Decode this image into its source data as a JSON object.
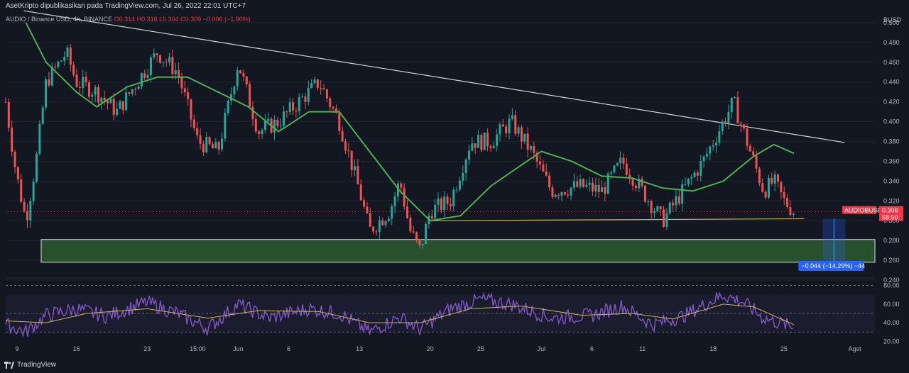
{
  "header": {
    "caption": "AsetKripto dipublikasikan pada TradingView.com, Jul 26, 2022 22:01 UTC+7"
  },
  "symbol_bar": {
    "name": "AUDIO / Binance USD, 4h, BINANCE",
    "ohlc": "O0.314  H0.316  L0.304  C0.309  −0.006 (−1.90%)"
  },
  "footer": {
    "brand": "TradingView"
  },
  "colors": {
    "background": "#131722",
    "grid": "#1f2430",
    "up_candle": "#26a69a",
    "down_candle": "#ef5350",
    "moving_average": "#4caf50",
    "trendline": "#d1d4dc",
    "support_line": "#c9b458",
    "zone_fill": "#2e5b2e",
    "rsi_line": "#7e57c2",
    "rsi_ma": "#c9b458",
    "price_tag": "#f23645",
    "measure_tag": "#2962ff"
  },
  "chart_data": {
    "type": "line",
    "symbol": "AUDIO / Binance USD",
    "timeframe": "4h",
    "y_axis": {
      "unit": "BUSD",
      "ticks": [
        "0.500",
        "0.480",
        "0.460",
        "0.440",
        "0.420",
        "0.400",
        "0.380",
        "0.360",
        "0.340",
        "0.320",
        "0.300",
        "0.280",
        "0.260",
        "0.240"
      ],
      "range": [
        0.24,
        0.51
      ]
    },
    "x_axis": {
      "ticks": [
        "9",
        "16",
        "23",
        "15:00",
        "Jun",
        "6",
        "13",
        "20",
        "25",
        "Jul",
        "6",
        "11",
        "18",
        "25",
        "Agst"
      ]
    },
    "price_series": [
      {
        "x": "May 9",
        "y": 0.42
      },
      {
        "x": "May 10",
        "y": 0.35
      },
      {
        "x": "May 11",
        "y": 0.3
      },
      {
        "x": "May 12",
        "y": 0.36
      },
      {
        "x": "May 13",
        "y": 0.44
      },
      {
        "x": "May 15",
        "y": 0.47
      },
      {
        "x": "May 16",
        "y": 0.44
      },
      {
        "x": "May 18",
        "y": 0.43
      },
      {
        "x": "May 20",
        "y": 0.41
      },
      {
        "x": "May 22",
        "y": 0.44
      },
      {
        "x": "May 24",
        "y": 0.47
      },
      {
        "x": "May 26",
        "y": 0.45
      },
      {
        "x": "May 28",
        "y": 0.38
      },
      {
        "x": "May 30",
        "y": 0.37
      },
      {
        "x": "Jun 1",
        "y": 0.46
      },
      {
        "x": "Jun 3",
        "y": 0.39
      },
      {
        "x": "Jun 5",
        "y": 0.4
      },
      {
        "x": "Jun 7",
        "y": 0.42
      },
      {
        "x": "Jun 9",
        "y": 0.44
      },
      {
        "x": "Jun 11",
        "y": 0.4
      },
      {
        "x": "Jun 13",
        "y": 0.33
      },
      {
        "x": "Jun 14",
        "y": 0.29
      },
      {
        "x": "Jun 16",
        "y": 0.31
      },
      {
        "x": "Jun 17",
        "y": 0.34
      },
      {
        "x": "Jun 18",
        "y": 0.29
      },
      {
        "x": "Jun 19",
        "y": 0.27
      },
      {
        "x": "Jun 20",
        "y": 0.31
      },
      {
        "x": "Jun 22",
        "y": 0.32
      },
      {
        "x": "Jun 24",
        "y": 0.38
      },
      {
        "x": "Jun 26",
        "y": 0.38
      },
      {
        "x": "Jun 28",
        "y": 0.4
      },
      {
        "x": "Jun 30",
        "y": 0.37
      },
      {
        "x": "Jul 2",
        "y": 0.33
      },
      {
        "x": "Jul 5",
        "y": 0.335
      },
      {
        "x": "Jul 7",
        "y": 0.33
      },
      {
        "x": "Jul 9",
        "y": 0.36
      },
      {
        "x": "Jul 11",
        "y": 0.33
      },
      {
        "x": "Jul 13",
        "y": 0.3
      },
      {
        "x": "Jul 15",
        "y": 0.33
      },
      {
        "x": "Jul 17",
        "y": 0.36
      },
      {
        "x": "Jul 19",
        "y": 0.4
      },
      {
        "x": "Jul 20",
        "y": 0.42
      },
      {
        "x": "Jul 21",
        "y": 0.39
      },
      {
        "x": "Jul 22",
        "y": 0.36
      },
      {
        "x": "Jul 23",
        "y": 0.33
      },
      {
        "x": "Jul 24",
        "y": 0.34
      },
      {
        "x": "Jul 25",
        "y": 0.32
      },
      {
        "x": "Jul 26",
        "y": 0.309
      }
    ],
    "moving_average": [
      {
        "x": "May 11",
        "y": 0.5
      },
      {
        "x": "May 13",
        "y": 0.46
      },
      {
        "x": "May 16",
        "y": 0.43
      },
      {
        "x": "May 18",
        "y": 0.415
      },
      {
        "x": "May 21",
        "y": 0.435
      },
      {
        "x": "May 24",
        "y": 0.445
      },
      {
        "x": "May 27",
        "y": 0.445
      },
      {
        "x": "May 30",
        "y": 0.43
      },
      {
        "x": "Jun 2",
        "y": 0.415
      },
      {
        "x": "Jun 5",
        "y": 0.39
      },
      {
        "x": "Jun 8",
        "y": 0.41
      },
      {
        "x": "Jun 11",
        "y": 0.41
      },
      {
        "x": "Jun 14",
        "y": 0.37
      },
      {
        "x": "Jun 17",
        "y": 0.33
      },
      {
        "x": "Jun 20",
        "y": 0.3
      },
      {
        "x": "Jun 23",
        "y": 0.305
      },
      {
        "x": "Jun 26",
        "y": 0.335
      },
      {
        "x": "Jul 1",
        "y": 0.37
      },
      {
        "x": "Jul 4",
        "y": 0.36
      },
      {
        "x": "Jul 7",
        "y": 0.345
      },
      {
        "x": "Jul 10",
        "y": 0.343
      },
      {
        "x": "Jul 13",
        "y": 0.333
      },
      {
        "x": "Jul 16",
        "y": 0.33
      },
      {
        "x": "Jul 19",
        "y": 0.34
      },
      {
        "x": "Jul 22",
        "y": 0.365
      },
      {
        "x": "Jul 24",
        "y": 0.377
      },
      {
        "x": "Jul 26",
        "y": 0.368
      }
    ],
    "current_price": {
      "label": "AUDIOBUSD",
      "value": "0.309",
      "countdown": "58:50"
    },
    "measure": {
      "label": "−0.044 (−14.29%) −44"
    },
    "rsi": {
      "ticks": [
        "80.00",
        "60.00",
        "40.00",
        "20.00"
      ],
      "range": [
        15,
        85
      ],
      "values": [
        {
          "x": "May 9",
          "y": 38
        },
        {
          "x": "May 11",
          "y": 30
        },
        {
          "x": "May 13",
          "y": 48
        },
        {
          "x": "May 16",
          "y": 55
        },
        {
          "x": "May 19",
          "y": 47
        },
        {
          "x": "May 23",
          "y": 62
        },
        {
          "x": "May 26",
          "y": 50
        },
        {
          "x": "May 29",
          "y": 34
        },
        {
          "x": "Jun 1",
          "y": 60
        },
        {
          "x": "Jun 4",
          "y": 45
        },
        {
          "x": "Jun 8",
          "y": 55
        },
        {
          "x": "Jun 11",
          "y": 50
        },
        {
          "x": "Jun 14",
          "y": 30
        },
        {
          "x": "Jun 17",
          "y": 46
        },
        {
          "x": "Jun 19",
          "y": 33
        },
        {
          "x": "Jun 22",
          "y": 55
        },
        {
          "x": "Jun 25",
          "y": 65
        },
        {
          "x": "Jun 28",
          "y": 60
        },
        {
          "x": "Jul 2",
          "y": 45
        },
        {
          "x": "Jul 6",
          "y": 48
        },
        {
          "x": "Jul 9",
          "y": 58
        },
        {
          "x": "Jul 12",
          "y": 38
        },
        {
          "x": "Jul 15",
          "y": 47
        },
        {
          "x": "Jul 19",
          "y": 70
        },
        {
          "x": "Jul 21",
          "y": 62
        },
        {
          "x": "Jul 23",
          "y": 45
        },
        {
          "x": "Jul 26",
          "y": 35
        }
      ],
      "ma": [
        {
          "x": "May 9",
          "y": 42
        },
        {
          "x": "May 13",
          "y": 40
        },
        {
          "x": "May 17",
          "y": 50
        },
        {
          "x": "May 23",
          "y": 55
        },
        {
          "x": "May 29",
          "y": 45
        },
        {
          "x": "Jun 3",
          "y": 53
        },
        {
          "x": "Jun 9",
          "y": 52
        },
        {
          "x": "Jun 14",
          "y": 40
        },
        {
          "x": "Jun 19",
          "y": 40
        },
        {
          "x": "Jun 24",
          "y": 55
        },
        {
          "x": "Jun 29",
          "y": 58
        },
        {
          "x": "Jul 5",
          "y": 48
        },
        {
          "x": "Jul 10",
          "y": 50
        },
        {
          "x": "Jul 14",
          "y": 44
        },
        {
          "x": "Jul 19",
          "y": 60
        },
        {
          "x": "Jul 22",
          "y": 57
        },
        {
          "x": "Jul 26",
          "y": 38
        }
      ]
    },
    "annotations": [
      {
        "kind": "descending trendline",
        "from": {
          "x": "May 11",
          "y": 0.512
        },
        "to": {
          "x": "Jul 31",
          "y": 0.379
        }
      },
      {
        "kind": "support line",
        "from": {
          "x": "Jun 20",
          "y": 0.3
        },
        "to": {
          "x": "Jul 27",
          "y": 0.302
        }
      },
      {
        "kind": "demand zone",
        "x_from": "May 9",
        "x_to": "Aug 3",
        "y_from": 0.258,
        "y_to": 0.281
      }
    ]
  }
}
